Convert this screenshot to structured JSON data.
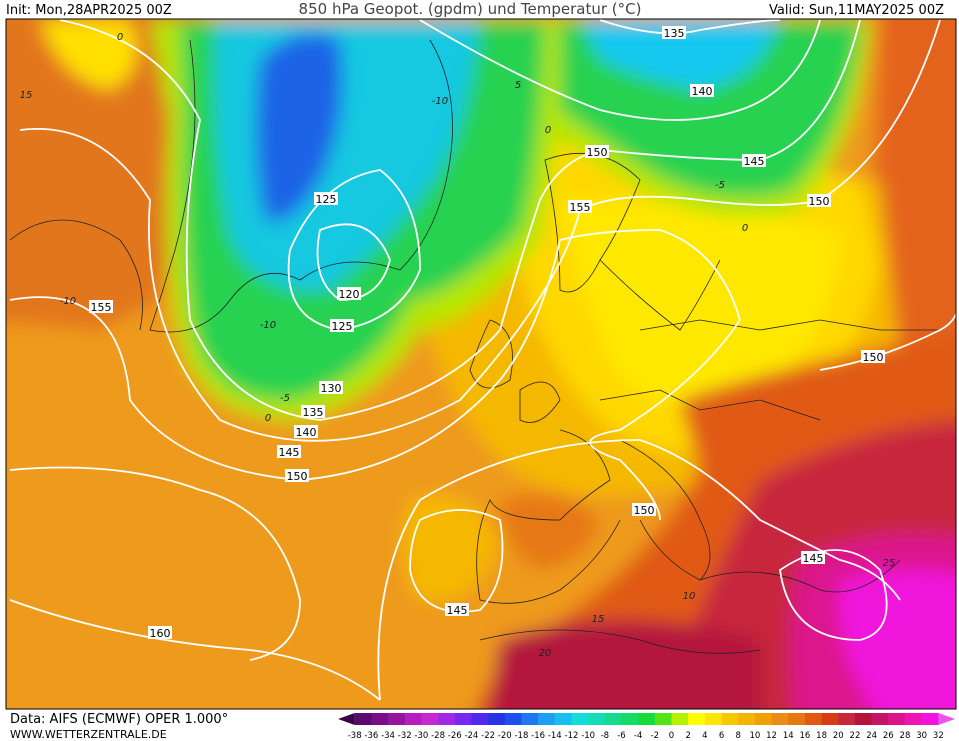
{
  "header": {
    "init": "Init: Mon,28APR2025 00Z",
    "title": "850 hPa Geopot. (gpdm) und Temperatur (°C)",
    "valid": "Valid: Sun,11MAY2025 00Z"
  },
  "map": {
    "geopotential_labels": [
      135,
      140,
      145,
      150,
      155,
      150,
      125,
      120,
      125,
      155,
      130,
      135,
      140,
      145,
      150,
      150,
      150,
      145,
      145,
      160
    ],
    "temperature_labels": [
      0,
      15,
      -10,
      -10,
      -5,
      0,
      -10,
      5,
      0,
      -5,
      0,
      25,
      15,
      20,
      10
    ]
  },
  "footer": {
    "source": "Data: AIFS (ECMWF) OPER 1.000°",
    "website": "WWW.WETTERZENTRALE.DE"
  },
  "colorbar": {
    "labels": [
      -38,
      -36,
      -34,
      -32,
      -30,
      -28,
      -26,
      -24,
      -22,
      -20,
      -18,
      -16,
      -14,
      -12,
      -10,
      -8,
      -6,
      -4,
      -2,
      0,
      2,
      4,
      6,
      8,
      10,
      12,
      14,
      16,
      18,
      20,
      22,
      24,
      26,
      28,
      30,
      32
    ],
    "colors": [
      "#3c0046",
      "#5a0a6a",
      "#780f86",
      "#9614a0",
      "#b41ebe",
      "#c828d2",
      "#a028e6",
      "#7828f0",
      "#5028f0",
      "#2832e6",
      "#1e50f0",
      "#1e78f0",
      "#1ea0f0",
      "#14c0f0",
      "#14dcdc",
      "#14dcb4",
      "#14dc8c",
      "#14dc64",
      "#14dc3c",
      "#50e614",
      "#b4f000",
      "#ffff00",
      "#ffe600",
      "#f5c800",
      "#f5b400",
      "#f0a000",
      "#eb8c14",
      "#e67814",
      "#e05a14",
      "#d83c14",
      "#c8283c",
      "#b4143c",
      "#c81464",
      "#dc148c",
      "#f014b4",
      "#f014dc",
      "#f050f0"
    ]
  }
}
